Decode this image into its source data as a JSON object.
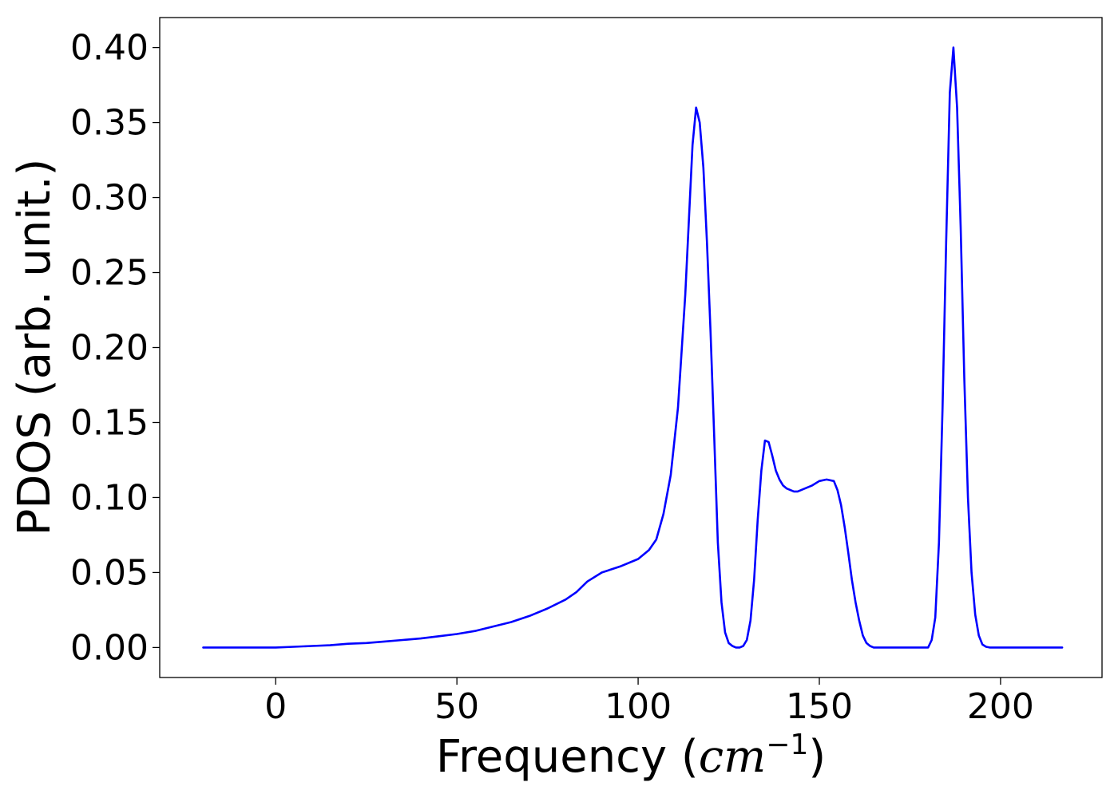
{
  "chart_data": {
    "type": "line",
    "title": "",
    "xlabel": {
      "prefix": "Frequency (",
      "math_base": "cm",
      "math_superscript": "−1",
      "suffix": ")"
    },
    "ylabel": "PDOS (arb. unit.)",
    "xlim": [
      -32,
      228
    ],
    "ylim": [
      -0.02,
      0.42
    ],
    "xticks": [
      0,
      50,
      100,
      150,
      200
    ],
    "xtick_labels": [
      "0",
      "50",
      "100",
      "150",
      "200"
    ],
    "yticks": [
      0.0,
      0.05,
      0.1,
      0.15,
      0.2,
      0.25,
      0.3,
      0.35,
      0.4
    ],
    "ytick_labels": [
      "0.00",
      "0.05",
      "0.10",
      "0.15",
      "0.20",
      "0.25",
      "0.30",
      "0.35",
      "0.40"
    ],
    "grid": false,
    "legend": "none",
    "series": [
      {
        "color": "#0000ff",
        "x": [
          -20,
          0,
          5,
          10,
          15,
          20,
          25,
          30,
          35,
          40,
          45,
          50,
          55,
          60,
          65,
          70,
          75,
          80,
          83,
          86,
          90,
          95,
          100,
          103,
          105,
          107,
          109,
          111,
          113,
          115,
          116,
          117,
          118,
          119,
          120,
          121,
          122,
          123,
          124,
          125,
          126,
          127,
          128,
          129,
          130,
          131,
          132,
          133,
          134,
          135,
          136,
          137,
          138,
          139,
          140,
          141,
          142,
          143,
          144,
          145,
          146,
          148,
          150,
          152,
          154,
          155,
          156,
          157,
          158,
          159,
          160,
          161,
          162,
          163,
          164,
          165,
          166,
          167,
          168,
          170,
          175,
          180,
          181,
          182,
          183,
          184,
          185,
          186,
          187,
          188,
          189,
          190,
          191,
          192,
          193,
          194,
          195,
          196,
          197,
          198,
          199,
          200,
          201,
          202,
          203,
          205,
          210,
          217
        ],
        "y": [
          0.0,
          0.0,
          0.0005,
          0.001,
          0.0015,
          0.0025,
          0.003,
          0.004,
          0.005,
          0.006,
          0.0075,
          0.009,
          0.011,
          0.014,
          0.017,
          0.021,
          0.026,
          0.032,
          0.037,
          0.044,
          0.05,
          0.054,
          0.059,
          0.065,
          0.072,
          0.089,
          0.115,
          0.16,
          0.235,
          0.335,
          0.36,
          0.35,
          0.32,
          0.27,
          0.21,
          0.14,
          0.07,
          0.03,
          0.01,
          0.003,
          0.001,
          0.0,
          0.0,
          0.001,
          0.005,
          0.018,
          0.045,
          0.085,
          0.118,
          0.138,
          0.137,
          0.128,
          0.118,
          0.112,
          0.108,
          0.106,
          0.105,
          0.104,
          0.104,
          0.105,
          0.106,
          0.108,
          0.111,
          0.112,
          0.111,
          0.105,
          0.095,
          0.08,
          0.063,
          0.045,
          0.03,
          0.018,
          0.008,
          0.003,
          0.001,
          0.0,
          0.0,
          0.0,
          0.0,
          0.0,
          0.0,
          0.0,
          0.005,
          0.02,
          0.07,
          0.16,
          0.27,
          0.37,
          0.4,
          0.36,
          0.28,
          0.18,
          0.1,
          0.05,
          0.022,
          0.008,
          0.002,
          0.0005,
          0.0,
          0.0,
          0.0,
          0.0,
          0.0,
          0.0,
          0.0,
          0.0,
          0.0,
          0.0
        ]
      }
    ]
  }
}
